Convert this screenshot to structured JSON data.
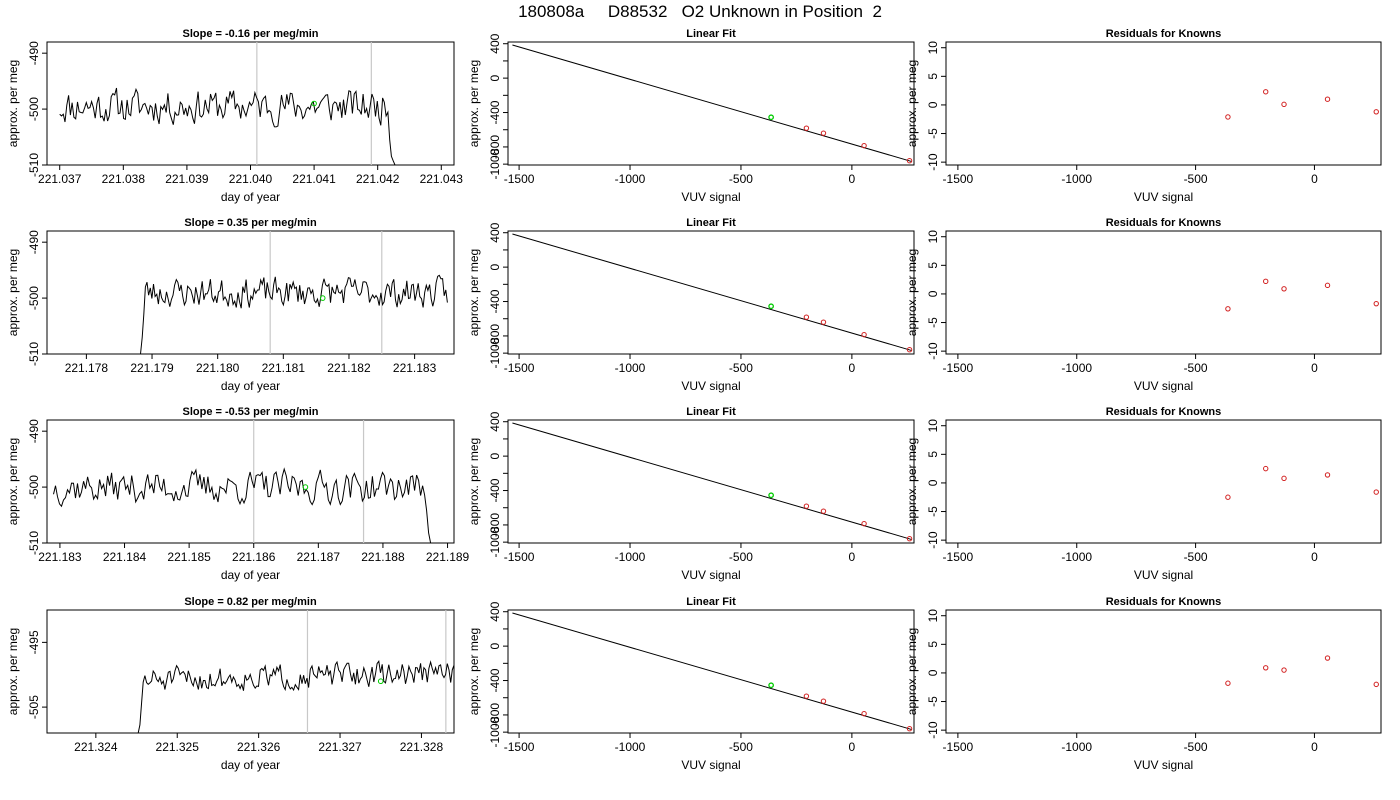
{
  "page_title": "180808a     D88532   O2 Unknown in Position  2",
  "panel_titles": {
    "linear_fit": "Linear Fit",
    "residuals": "Residuals for Knowns"
  },
  "axis_labels": {
    "day_of_year": "day of year",
    "per_meg": "approx. per meg",
    "vuv_signal": "VUV signal"
  },
  "colors": {
    "trace": "#000000",
    "marker_lines": "#c8c8c8",
    "unknown_point": "#00cc00",
    "known_points": "#d22020",
    "frame": "#000000"
  },
  "chart_data": [
    {
      "type": "line",
      "row": 1,
      "title": "Slope =  -0.16  per meg/min",
      "xlabel": "day of year",
      "ylabel": "approx. per meg",
      "xlim": [
        221.0368,
        221.0432
      ],
      "ylim": [
        -510,
        -488
      ],
      "xticks": [
        221.037,
        221.038,
        221.039,
        221.04,
        221.041,
        221.042,
        221.043
      ],
      "xtick_labels": [
        "221.037",
        "221.038",
        "221.039",
        "221.040",
        "221.041",
        "221.042",
        "221.043"
      ],
      "yticks": [
        -490,
        -500,
        -510
      ],
      "ytick_labels": [
        "-490",
        "-500",
        "-510"
      ],
      "x_start": 221.037,
      "x_end": 221.0423,
      "seed": 11,
      "y_mean": -499.5,
      "y_amp": 4.2,
      "tail": "down",
      "marker_lines_x": [
        221.0401,
        221.0419
      ],
      "unknown_point": {
        "x": 221.041,
        "y": -499
      }
    },
    {
      "type": "line",
      "row": 2,
      "title": "Slope =  0.35  per meg/min",
      "xlabel": "day of year",
      "ylabel": "approx. per meg",
      "xlim": [
        221.1774,
        221.1836
      ],
      "ylim": [
        -510,
        -488
      ],
      "xticks": [
        221.178,
        221.179,
        221.18,
        221.181,
        221.182,
        221.183
      ],
      "xtick_labels": [
        "221.178",
        "221.179",
        "221.180",
        "221.181",
        "221.182",
        "221.183"
      ],
      "yticks": [
        -490,
        -500,
        -510
      ],
      "ytick_labels": [
        "-490",
        "-500",
        "-510"
      ],
      "x_start": 221.1788,
      "x_end": 221.1835,
      "seed": 23,
      "y_mean": -499,
      "y_amp": 3.6,
      "head": "up",
      "marker_lines_x": [
        221.1808,
        221.1825
      ],
      "unknown_point": {
        "x": 221.1816,
        "y": -500
      }
    },
    {
      "type": "line",
      "row": 3,
      "title": "Slope =  -0.53  per meg/min",
      "xlabel": "day of year",
      "ylabel": "approx. per meg",
      "xlim": [
        221.1828,
        221.1891
      ],
      "ylim": [
        -510,
        -488
      ],
      "xticks": [
        221.183,
        221.184,
        221.185,
        221.186,
        221.187,
        221.188,
        221.189
      ],
      "xtick_labels": [
        "221.183",
        "221.184",
        "221.185",
        "221.186",
        "221.187",
        "221.188",
        "221.189"
      ],
      "yticks": [
        -490,
        -500,
        -510
      ],
      "ytick_labels": [
        "-490",
        "-500",
        "-510"
      ],
      "x_start": 221.1829,
      "x_end": 221.1888,
      "seed": 37,
      "y_mean": -500,
      "y_amp": 4.0,
      "tail": "down",
      "marker_lines_x": [
        221.186,
        221.1877
      ],
      "unknown_point": {
        "x": 221.1868,
        "y": -500
      }
    },
    {
      "type": "line",
      "row": 4,
      "title": "Slope =  0.82  per meg/min",
      "xlabel": "day of year",
      "ylabel": "approx. per meg",
      "xlim": [
        221.3234,
        221.3284
      ],
      "ylim": [
        -509,
        -490
      ],
      "xticks": [
        221.324,
        221.325,
        221.326,
        221.327,
        221.328
      ],
      "xtick_labels": [
        "221.324",
        "221.325",
        "221.326",
        "221.327",
        "221.328"
      ],
      "yticks": [
        -495,
        -505
      ],
      "ytick_labels": [
        "-495",
        "-505"
      ],
      "x_start": 221.3245,
      "x_end": 221.3284,
      "seed": 51,
      "y_mean": -500.3,
      "y_amp": 2.6,
      "trend": 1.3,
      "head": "up",
      "marker_lines_x": [
        221.3266,
        221.3283
      ],
      "unknown_point": {
        "x": 221.3275,
        "y": -501
      }
    },
    {
      "type": "scatter",
      "row": 1,
      "title": "Linear Fit",
      "xlabel": "VUV signal",
      "ylabel": "approx. per meg",
      "xlim": [
        -1550,
        280
      ],
      "ylim": [
        -1010,
        420
      ],
      "xticks": [
        -1500,
        -1000,
        -500,
        0
      ],
      "xtick_labels": [
        "-1500",
        "-1000",
        "-500",
        "0"
      ],
      "yticks": [
        400,
        200,
        0,
        -200,
        -400,
        -600,
        -800,
        -1000
      ],
      "ytick_labels": [
        "400",
        "",
        "0",
        "",
        "-400",
        "",
        "-800",
        "-1000"
      ],
      "fit_line": {
        "x": [
          -1530,
          270
        ],
        "y": [
          385,
          -970
        ]
      },
      "known_points": [
        {
          "x": -205,
          "y": -582
        },
        {
          "x": -128,
          "y": -640
        },
        {
          "x": 55,
          "y": -785
        },
        {
          "x": 260,
          "y": -960
        }
      ],
      "unknown_point": {
        "x": -364,
        "y": -455
      }
    },
    {
      "type": "scatter",
      "row": 2,
      "title": "Linear Fit",
      "xlabel": "VUV signal",
      "ylabel": "approx. per meg",
      "xlim": [
        -1550,
        280
      ],
      "ylim": [
        -1010,
        420
      ],
      "xticks": [
        -1500,
        -1000,
        -500,
        0
      ],
      "xtick_labels": [
        "-1500",
        "-1000",
        "-500",
        "0"
      ],
      "yticks": [
        400,
        200,
        0,
        -200,
        -400,
        -600,
        -800,
        -1000
      ],
      "ytick_labels": [
        "400",
        "",
        "0",
        "",
        "-400",
        "",
        "-800",
        "-1000"
      ],
      "fit_line": {
        "x": [
          -1530,
          270
        ],
        "y": [
          385,
          -970
        ]
      },
      "known_points": [
        {
          "x": -205,
          "y": -582
        },
        {
          "x": -128,
          "y": -640
        },
        {
          "x": 55,
          "y": -785
        },
        {
          "x": 260,
          "y": -960
        }
      ],
      "unknown_point": {
        "x": -364,
        "y": -455
      }
    },
    {
      "type": "scatter",
      "row": 3,
      "title": "Linear Fit",
      "xlabel": "VUV signal",
      "ylabel": "approx. per meg",
      "xlim": [
        -1550,
        280
      ],
      "ylim": [
        -1010,
        420
      ],
      "xticks": [
        -1500,
        -1000,
        -500,
        0
      ],
      "xtick_labels": [
        "-1500",
        "-1000",
        "-500",
        "0"
      ],
      "yticks": [
        400,
        200,
        0,
        -200,
        -400,
        -600,
        -800,
        -1000
      ],
      "ytick_labels": [
        "400",
        "",
        "0",
        "",
        "-400",
        "",
        "-800",
        "-1000"
      ],
      "fit_line": {
        "x": [
          -1530,
          270
        ],
        "y": [
          385,
          -970
        ]
      },
      "known_points": [
        {
          "x": -205,
          "y": -582
        },
        {
          "x": -128,
          "y": -640
        },
        {
          "x": 55,
          "y": -785
        },
        {
          "x": 260,
          "y": -960
        }
      ],
      "unknown_point": {
        "x": -364,
        "y": -455
      }
    },
    {
      "type": "scatter",
      "row": 4,
      "title": "Linear Fit",
      "xlabel": "VUV signal",
      "ylabel": "approx. per meg",
      "xlim": [
        -1550,
        280
      ],
      "ylim": [
        -1010,
        420
      ],
      "xticks": [
        -1500,
        -1000,
        -500,
        0
      ],
      "xtick_labels": [
        "-1500",
        "-1000",
        "-500",
        "0"
      ],
      "yticks": [
        400,
        200,
        0,
        -200,
        -400,
        -600,
        -800,
        -1000
      ],
      "ytick_labels": [
        "400",
        "",
        "0",
        "",
        "-400",
        "",
        "-800",
        "-1000"
      ],
      "fit_line": {
        "x": [
          -1530,
          270
        ],
        "y": [
          385,
          -970
        ]
      },
      "known_points": [
        {
          "x": -205,
          "y": -582
        },
        {
          "x": -128,
          "y": -640
        },
        {
          "x": 55,
          "y": -785
        },
        {
          "x": 260,
          "y": -960
        }
      ],
      "unknown_point": {
        "x": -364,
        "y": -455
      }
    },
    {
      "type": "scatter",
      "row": 1,
      "title": "Residuals for Knowns",
      "xlabel": "VUV signal",
      "ylabel": "approx. per meg",
      "xlim": [
        -1550,
        280
      ],
      "ylim": [
        -10.5,
        11
      ],
      "xticks": [
        -1500,
        -1000,
        -500,
        0
      ],
      "xtick_labels": [
        "-1500",
        "-1000",
        "-500",
        "0"
      ],
      "yticks": [
        10,
        5,
        0,
        -5,
        -10
      ],
      "ytick_labels": [
        "10",
        "5",
        "0",
        "-5",
        "-10"
      ],
      "points": [
        {
          "x": -364,
          "y": -2.1
        },
        {
          "x": -205,
          "y": 2.3
        },
        {
          "x": -128,
          "y": 0.1
        },
        {
          "x": 55,
          "y": 1.0
        },
        {
          "x": 260,
          "y": -1.2
        }
      ]
    },
    {
      "type": "scatter",
      "row": 2,
      "title": "Residuals for Knowns",
      "xlabel": "VUV signal",
      "ylabel": "approx. per meg",
      "xlim": [
        -1550,
        280
      ],
      "ylim": [
        -10.5,
        11
      ],
      "xticks": [
        -1500,
        -1000,
        -500,
        0
      ],
      "xtick_labels": [
        "-1500",
        "-1000",
        "-500",
        "0"
      ],
      "yticks": [
        10,
        5,
        0,
        -5,
        -10
      ],
      "ytick_labels": [
        "10",
        "5",
        "0",
        "-5",
        "-10"
      ],
      "points": [
        {
          "x": -364,
          "y": -2.6
        },
        {
          "x": -205,
          "y": 2.2
        },
        {
          "x": -128,
          "y": 0.9
        },
        {
          "x": 55,
          "y": 1.5
        },
        {
          "x": 260,
          "y": -1.7
        }
      ]
    },
    {
      "type": "scatter",
      "row": 3,
      "title": "Residuals for Knowns",
      "xlabel": "VUV signal",
      "ylabel": "approx. per meg",
      "xlim": [
        -1550,
        280
      ],
      "ylim": [
        -10.5,
        11
      ],
      "xticks": [
        -1500,
        -1000,
        -500,
        0
      ],
      "xtick_labels": [
        "-1500",
        "-1000",
        "-500",
        "0"
      ],
      "yticks": [
        10,
        5,
        0,
        -5,
        -10
      ],
      "ytick_labels": [
        "10",
        "5",
        "0",
        "-5",
        "-10"
      ],
      "points": [
        {
          "x": -364,
          "y": -2.5
        },
        {
          "x": -205,
          "y": 2.5
        },
        {
          "x": -128,
          "y": 0.8
        },
        {
          "x": 55,
          "y": 1.4
        },
        {
          "x": 260,
          "y": -1.6
        }
      ]
    },
    {
      "type": "scatter",
      "row": 4,
      "title": "Residuals for Knowns",
      "xlabel": "VUV signal",
      "ylabel": "approx. per meg",
      "xlim": [
        -1550,
        280
      ],
      "ylim": [
        -10.5,
        11
      ],
      "xticks": [
        -1500,
        -1000,
        -500,
        0
      ],
      "xtick_labels": [
        "-1500",
        "-1000",
        "-500",
        "0"
      ],
      "yticks": [
        10,
        5,
        0,
        -5,
        -10
      ],
      "ytick_labels": [
        "10",
        "5",
        "0",
        "-5",
        "-10"
      ],
      "points": [
        {
          "x": -364,
          "y": -1.8
        },
        {
          "x": -205,
          "y": 0.9
        },
        {
          "x": -128,
          "y": 0.5
        },
        {
          "x": 55,
          "y": 2.6
        },
        {
          "x": 260,
          "y": -2.0
        }
      ]
    }
  ]
}
